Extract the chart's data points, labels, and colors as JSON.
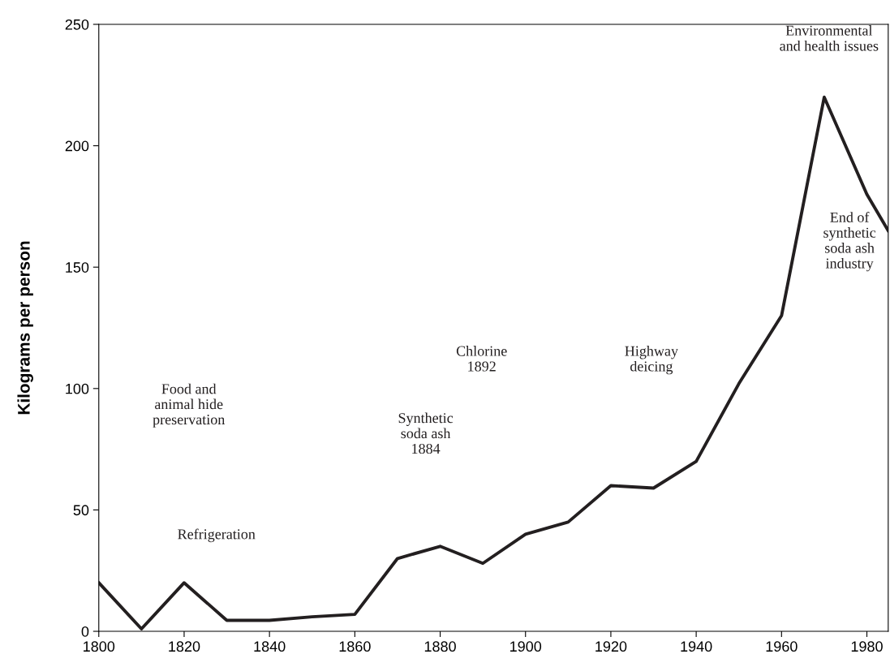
{
  "chart_data": {
    "type": "line",
    "ylabel": "Kilograms per person",
    "x": [
      1800,
      1810,
      1820,
      1830,
      1840,
      1850,
      1860,
      1870,
      1880,
      1890,
      1900,
      1910,
      1920,
      1930,
      1940,
      1950,
      1960,
      1970,
      1980,
      1985
    ],
    "series": [
      {
        "color": "#231f20",
        "values": [
          20,
          1,
          20,
          4.5,
          4.5,
          6,
          7,
          30,
          35,
          28,
          40,
          45,
          60,
          59,
          70,
          102,
          130,
          220,
          180,
          165
        ]
      }
    ],
    "xlim": [
      1800,
      1985
    ],
    "xticks": [
      1800,
      1820,
      1840,
      1860,
      1880,
      1900,
      1920,
      1940,
      1960,
      1980
    ],
    "ylim": [
      0,
      250
    ],
    "yticks": [
      0,
      50,
      100,
      150,
      200,
      250
    ],
    "grid": false,
    "legend": false,
    "marker": "none",
    "line_style": "solid",
    "annotations": [
      "Food and\nanimal hide\npreservation",
      "Refrigeration",
      "Synthetic\nsoda ash\n1884",
      "Chlorine\n1892",
      "Highway\ndeicing",
      "Environmental\nand health issues",
      "End of\nsynthetic\nsoda ash\nindustry"
    ]
  }
}
